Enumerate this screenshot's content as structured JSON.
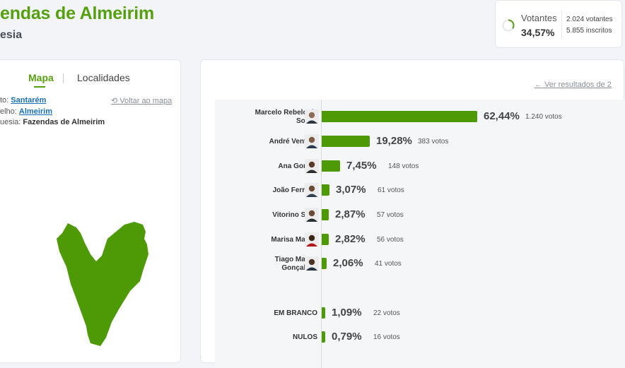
{
  "header": {
    "title": "endas de Almeirim",
    "subtitle": "esia"
  },
  "votantes": {
    "label": "Votantes",
    "percentage": "34,57%",
    "fill_fraction": 0.3457,
    "voters": "2.024 votantes",
    "registered": "5.855 inscritos"
  },
  "map_panel": {
    "tabs": [
      "Mapa",
      "Localidades"
    ],
    "active_tab": "Mapa",
    "back_link": "Voltar ao mapa",
    "breadcrumb": [
      {
        "label": "to:",
        "value": "Santarém",
        "link": true
      },
      {
        "label": "elho:",
        "value": "Almeirim",
        "link": true
      },
      {
        "label": "uesia:",
        "value": "Fazendas de Almeirim",
        "link": false
      }
    ],
    "map_color": "#4e9a06"
  },
  "results": {
    "ver_link": "Ver resultados de 2",
    "candidates": [
      {
        "name": "Marcelo Rebelo de Sousa",
        "pct": "62,44%",
        "votes": "1.240 votos",
        "value": 62.44
      },
      {
        "name": "André Ventura",
        "pct": "19,28%",
        "votes": "383 votos",
        "value": 19.28
      },
      {
        "name": "Ana Gomes",
        "pct": "7,45%",
        "votes": "148 votos",
        "value": 7.45
      },
      {
        "name": "João Ferreira",
        "pct": "3,07%",
        "votes": "61 votos",
        "value": 3.07
      },
      {
        "name": "Vitorino Silva",
        "pct": "2,87%",
        "votes": "57 votos",
        "value": 2.87
      },
      {
        "name": "Marisa Matias",
        "pct": "2,82%",
        "votes": "56 votos",
        "value": 2.82
      },
      {
        "name": "Tiago Mayan Gonçalves",
        "pct": "2,06%",
        "votes": "41 votos",
        "value": 2.06
      }
    ],
    "others": [
      {
        "name": "EM BRANCO",
        "pct": "1,09%",
        "votes": "22 votos",
        "value": 1.09
      },
      {
        "name": "NULOS",
        "pct": "0,79%",
        "votes": "16 votos",
        "value": 0.79
      }
    ],
    "bar_color": "#4e9a06"
  }
}
